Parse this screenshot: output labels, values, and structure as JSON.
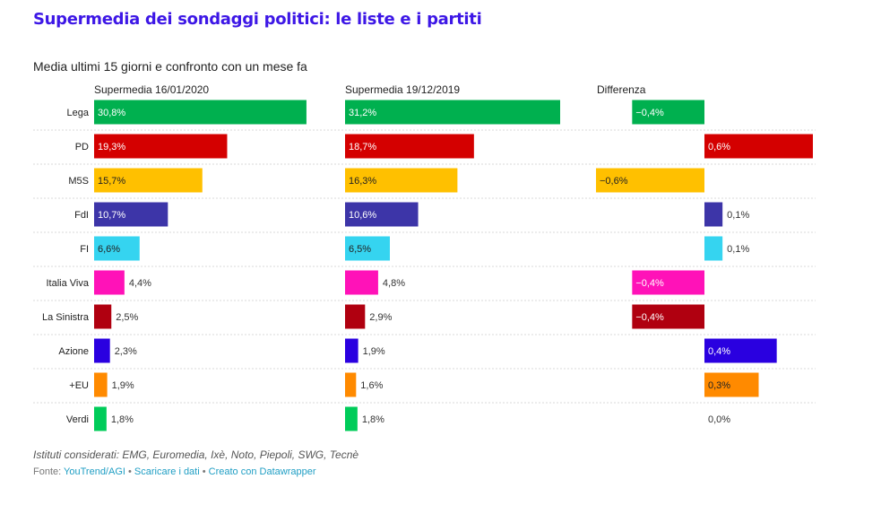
{
  "title": "Supermedia dei sondaggi politici: le liste e i partiti",
  "subtitle": "Media ultimi 15 giorni e confronto con un mese fa",
  "notes": "Istituti considerati: EMG, Euromedia, Ixè, Noto, Piepoli, SWG, Tecnè",
  "footer": {
    "source_prefix": "Fonte: ",
    "source": "YouTrend/AGI",
    "separator": " • ",
    "download": "Scaricare i dati",
    "created": "Creato con Datawrapper"
  },
  "chart_data": {
    "type": "bar",
    "orientation": "horizontal",
    "categories": [
      "Lega",
      "PD",
      "M5S",
      "FdI",
      "FI",
      "Italia Viva",
      "La Sinistra",
      "Azione",
      "+EU",
      "Verdi"
    ],
    "colors": [
      "#00b04f",
      "#d40000",
      "#ffc000",
      "#3d35a8",
      "#35d4f0",
      "#ff12b8",
      "#b00010",
      "#2a00e0",
      "#ff8a00",
      "#00cc5a"
    ],
    "series": [
      {
        "name": "Supermedia 16/01/2020",
        "values": [
          30.8,
          19.3,
          15.7,
          10.7,
          6.6,
          4.4,
          2.5,
          2.3,
          1.9,
          1.8
        ],
        "labels": [
          "30,8%",
          "19,3%",
          "15,7%",
          "10,7%",
          "6,6%",
          "4,4%",
          "2,5%",
          "2,3%",
          "1,9%",
          "1,8%"
        ]
      },
      {
        "name": "Supermedia 19/12/2019",
        "values": [
          31.2,
          18.7,
          16.3,
          10.6,
          6.5,
          4.8,
          2.9,
          1.9,
          1.6,
          1.8
        ],
        "labels": [
          "31,2%",
          "18,7%",
          "16,3%",
          "10,6%",
          "6,5%",
          "4,8%",
          "2,9%",
          "1,9%",
          "1,6%",
          "1,8%"
        ]
      },
      {
        "name": "Differenza",
        "values": [
          -0.4,
          0.6,
          -0.6,
          0.1,
          0.1,
          -0.4,
          -0.4,
          0.4,
          0.3,
          0.0
        ],
        "labels": [
          "−0,4%",
          "0,6%",
          "−0,6%",
          "0,1%",
          "0,1%",
          "−0,4%",
          "−0,4%",
          "0,4%",
          "0,3%",
          "0,0%"
        ]
      }
    ],
    "xlim": [
      0,
      31.2
    ],
    "diff_lim": [
      -0.6,
      0.6
    ],
    "legend": "column headers"
  }
}
